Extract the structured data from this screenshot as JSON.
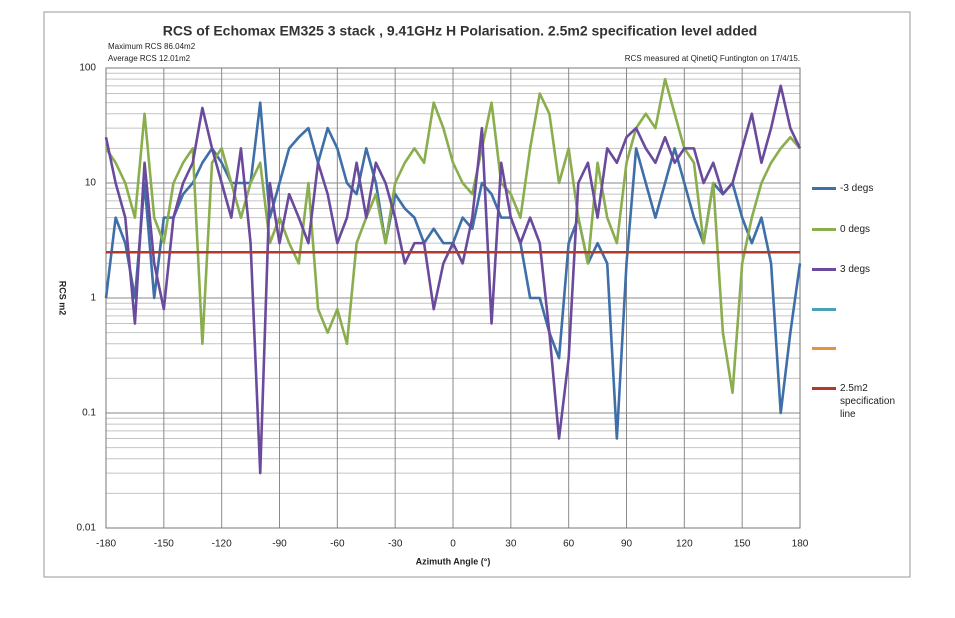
{
  "chart_data": {
    "type": "line",
    "title": "RCS of Echomax EM325 3 stack , 9.41GHz H Polarisation. 2.5m2 specification level added",
    "annotations": [
      "Maximum RCS 86.04m2",
      "Average RCS 12.01m2",
      "RCS measured at QinetiQ Funtington on 17/4/15."
    ],
    "x_label": "Azimuth Angle (°)",
    "y_label": "RCS m2",
    "x": [
      -180,
      -175,
      -170,
      -165,
      -160,
      -155,
      -150,
      -145,
      -140,
      -135,
      -130,
      -125,
      -120,
      -115,
      -110,
      -105,
      -100,
      -95,
      -90,
      -85,
      -80,
      -75,
      -70,
      -65,
      -60,
      -55,
      -50,
      -45,
      -40,
      -35,
      -30,
      -25,
      -20,
      -15,
      -10,
      -5,
      0,
      5,
      10,
      15,
      20,
      25,
      30,
      35,
      40,
      45,
      50,
      55,
      60,
      65,
      70,
      75,
      80,
      85,
      90,
      95,
      100,
      105,
      110,
      115,
      120,
      125,
      130,
      135,
      140,
      145,
      150,
      155,
      160,
      165,
      170,
      175,
      180
    ],
    "series": [
      {
        "name": "-3 degs",
        "color": "#3e6fa8",
        "values": [
          1,
          5,
          3,
          1,
          10,
          1,
          5,
          5,
          8,
          10,
          15,
          20,
          15,
          10,
          10,
          10,
          50,
          5,
          10,
          20,
          25,
          30,
          15,
          30,
          20,
          10,
          8,
          20,
          10,
          3,
          8,
          6,
          5,
          3,
          4,
          3,
          3,
          5,
          4,
          10,
          8,
          5,
          5,
          3,
          1,
          1,
          0.5,
          0.3,
          3,
          5,
          2,
          3,
          2,
          0.06,
          2,
          20,
          10,
          5,
          10,
          20,
          10,
          5,
          3,
          10,
          8,
          10,
          5,
          3,
          5,
          2,
          0.1,
          0.5,
          2
        ]
      },
      {
        "name": "0 degs",
        "color": "#8aae4e",
        "values": [
          20,
          15,
          10,
          5,
          40,
          5,
          3,
          10,
          15,
          20,
          0.4,
          15,
          20,
          10,
          5,
          10,
          15,
          3,
          5,
          3,
          2,
          10,
          0.8,
          0.5,
          0.8,
          0.4,
          3,
          5,
          8,
          3,
          10,
          15,
          20,
          15,
          50,
          30,
          15,
          10,
          8,
          20,
          50,
          10,
          8,
          5,
          20,
          60,
          40,
          10,
          20,
          5,
          2,
          15,
          5,
          3,
          15,
          30,
          40,
          30,
          80,
          40,
          20,
          15,
          3,
          10,
          0.5,
          0.15,
          2,
          5,
          10,
          15,
          20,
          25,
          20
        ]
      },
      {
        "name": "3 degs",
        "color": "#6a4a9c",
        "values": [
          25,
          10,
          5,
          0.6,
          15,
          2,
          0.8,
          5,
          10,
          15,
          45,
          20,
          10,
          5,
          20,
          3,
          0.03,
          10,
          3,
          8,
          5,
          3,
          15,
          8,
          3,
          5,
          15,
          5,
          15,
          10,
          5,
          2,
          3,
          3,
          0.8,
          2,
          3,
          2,
          5,
          30,
          0.6,
          15,
          5,
          3,
          5,
          3,
          0.5,
          0.06,
          0.3,
          10,
          15,
          5,
          20,
          15,
          25,
          30,
          20,
          15,
          25,
          15,
          20,
          20,
          10,
          15,
          8,
          10,
          20,
          40,
          15,
          30,
          70,
          30,
          20
        ]
      },
      {
        "name": "2.5m2 specification line",
        "color": "#b03a2e",
        "values": [
          2.5,
          2.5,
          2.5,
          2.5,
          2.5,
          2.5,
          2.5,
          2.5,
          2.5,
          2.5,
          2.5,
          2.5,
          2.5,
          2.5,
          2.5,
          2.5,
          2.5,
          2.5,
          2.5,
          2.5,
          2.5,
          2.5,
          2.5,
          2.5,
          2.5,
          2.5,
          2.5,
          2.5,
          2.5,
          2.5,
          2.5,
          2.5,
          2.5,
          2.5,
          2.5,
          2.5,
          2.5,
          2.5,
          2.5,
          2.5,
          2.5,
          2.5,
          2.5,
          2.5,
          2.5,
          2.5,
          2.5,
          2.5,
          2.5,
          2.5,
          2.5,
          2.5,
          2.5,
          2.5,
          2.5,
          2.5,
          2.5,
          2.5,
          2.5,
          2.5,
          2.5,
          2.5,
          2.5,
          2.5,
          2.5,
          2.5,
          2.5,
          2.5,
          2.5,
          2.5,
          2.5,
          2.5,
          2.5
        ]
      }
    ],
    "xlim": [
      -180,
      180
    ],
    "xticks": [
      -180,
      -150,
      -120,
      -90,
      -60,
      -30,
      0,
      30,
      60,
      90,
      120,
      150,
      180
    ],
    "ylim": [
      0.01,
      100
    ],
    "yticks": [
      0.01,
      0.1,
      1,
      10,
      100
    ],
    "log_y": true,
    "grid": true,
    "minor_grid": true,
    "legend": "right"
  }
}
